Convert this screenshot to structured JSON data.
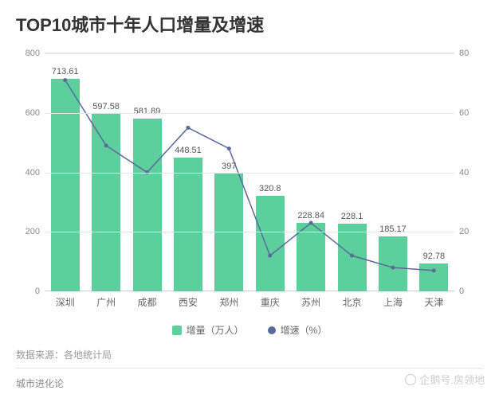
{
  "title": "TOP10城市十年人口增量及增速",
  "chart": {
    "type": "bar+line",
    "categories": [
      "深圳",
      "广州",
      "成都",
      "西安",
      "郑州",
      "重庆",
      "苏州",
      "北京",
      "上海",
      "天津"
    ],
    "bar_series": {
      "label": "增量（万人）",
      "values": [
        713.61,
        597.58,
        581.89,
        448.51,
        397,
        320.8,
        228.84,
        228.1,
        185.17,
        92.78
      ],
      "color": "#5ccf9d"
    },
    "line_series": {
      "label": "增速（%）",
      "values": [
        71,
        49,
        40,
        55,
        48,
        12,
        23,
        12,
        8,
        7
      ],
      "color": "#5a6a9a",
      "marker_size": 5,
      "line_width": 1.5
    },
    "left_axis": {
      "min": 0,
      "max": 800,
      "step": 200,
      "ticks": [
        0,
        200,
        400,
        600,
        800
      ]
    },
    "right_axis": {
      "min": 0,
      "max": 80,
      "step": 20,
      "ticks": [
        0,
        20,
        40,
        60,
        80
      ]
    },
    "background_color": "#ffffff",
    "grid_color": "#e6e6e6",
    "bar_width": 0.7,
    "label_fontsize": 11,
    "category_fontsize": 12,
    "value_label_color": "#555555"
  },
  "legend": {
    "bar_label": "增量（万人）",
    "line_label": "增速（%）"
  },
  "source_text": "数据来源：各地统计局",
  "footer_text": "城市进化论",
  "watermark_text": "企鹅号.房领地"
}
